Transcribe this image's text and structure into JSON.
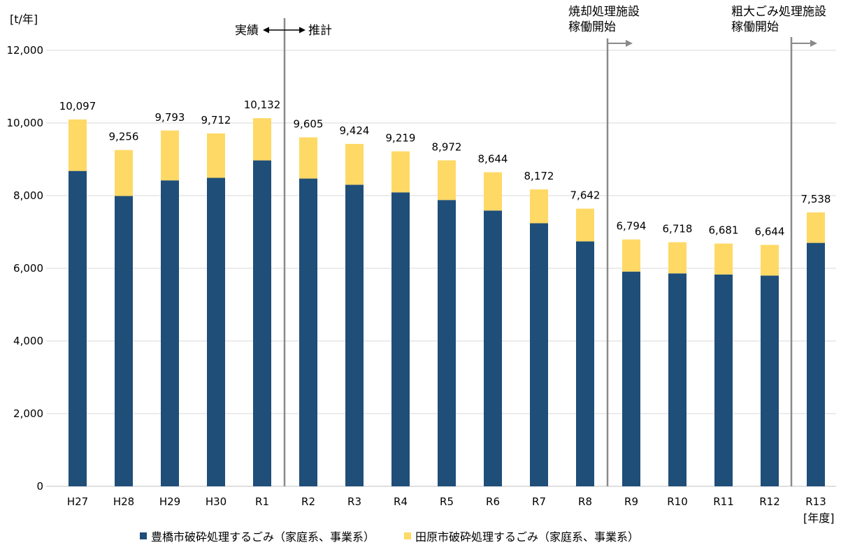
{
  "chart_data": {
    "type": "bar",
    "stacked": true,
    "y_unit": "[t/年]",
    "x_unit": "[年度]",
    "ylim": [
      0,
      12000
    ],
    "yticks": [
      "0",
      "2,000",
      "4,000",
      "6,000",
      "8,000",
      "10,000",
      "12,000"
    ],
    "ytick_values": [
      0,
      2000,
      4000,
      6000,
      8000,
      10000,
      12000
    ],
    "grid": true,
    "legend_position": "bottom",
    "categories": [
      "H27",
      "H28",
      "H29",
      "H30",
      "R1",
      "R2",
      "R3",
      "R4",
      "R5",
      "R6",
      "R7",
      "R8",
      "R9",
      "R10",
      "R11",
      "R12",
      "R13"
    ],
    "series": [
      {
        "name": "豊橋市破砕処理するごみ（家庭系、事業系）",
        "color": "#1f4e79",
        "values": [
          8680,
          7990,
          8420,
          8490,
          8970,
          8470,
          8300,
          8090,
          7880,
          7590,
          7240,
          6740,
          5910,
          5860,
          5830,
          5800,
          6700
        ]
      },
      {
        "name": "田原市破砕処理するごみ（家庭系、事業系）",
        "color": "#ffd966",
        "values": [
          1417,
          1266,
          1373,
          1222,
          1162,
          1135,
          1124,
          1129,
          1092,
          1054,
          932,
          902,
          884,
          858,
          851,
          844,
          838
        ]
      }
    ],
    "totals": [
      10097,
      9256,
      9793,
      9712,
      10132,
      9605,
      9424,
      9219,
      8972,
      8644,
      8172,
      7642,
      6794,
      6718,
      6681,
      6644,
      7538
    ],
    "total_labels": [
      "10,097",
      "9,256",
      "9,793",
      "9,712",
      "10,132",
      "9,605",
      "9,424",
      "9,219",
      "8,972",
      "8,644",
      "8,172",
      "7,642",
      "6,794",
      "6,718",
      "6,681",
      "6,644",
      "7,538"
    ],
    "annotations": {
      "actual": "実績",
      "estimate": "推計",
      "incineration_line1": "焼却処理施設",
      "incineration_line2": "稼働開始",
      "bulky_line1": "粗大ごみ処理施設",
      "bulky_line2": "稼働開始"
    }
  }
}
